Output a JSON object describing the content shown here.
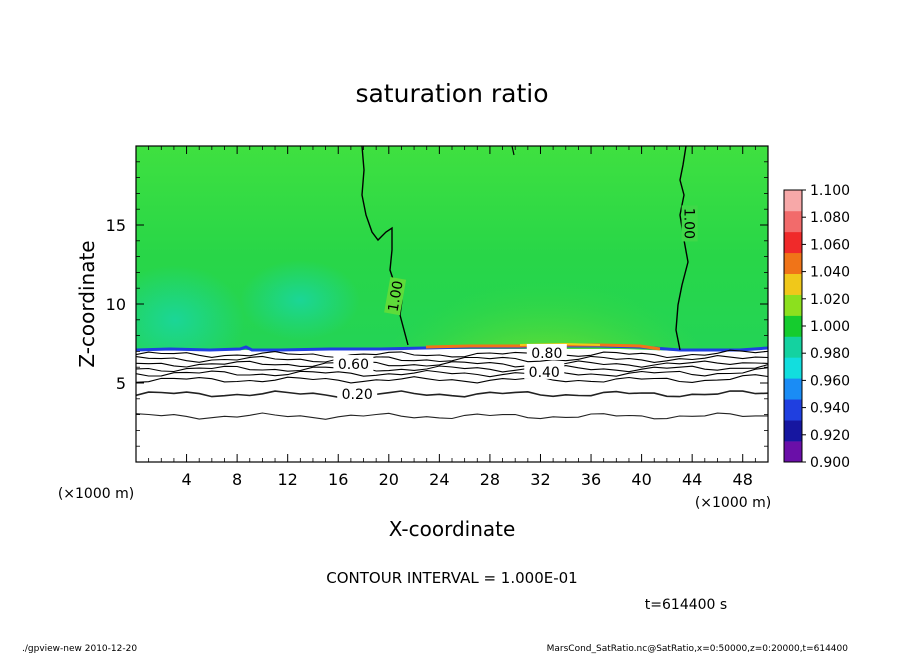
{
  "chart_data": {
    "type": "contour",
    "title": "saturation ratio",
    "xlabel": "X-coordinate",
    "ylabel": "Z-coordinate",
    "x_unit_note": "(×1000 m)",
    "y_unit_note": "(×1000 m)",
    "xlim": [
      0,
      50
    ],
    "ylim": [
      0,
      20
    ],
    "x_ticks": [
      4,
      8,
      12,
      16,
      20,
      24,
      28,
      32,
      36,
      40,
      44,
      48
    ],
    "y_ticks": [
      5,
      10,
      15
    ],
    "contour_interval_text": "CONTOUR INTERVAL = 1.000E-01",
    "time_text": "t=614400 s",
    "colorbar": {
      "levels": [
        0.9,
        0.92,
        0.94,
        0.96,
        0.98,
        1.0,
        1.02,
        1.04,
        1.06,
        1.08,
        1.1
      ],
      "labels": [
        "0.900",
        "0.920",
        "0.940",
        "0.960",
        "0.980",
        "1.000",
        "1.020",
        "1.040",
        "1.060",
        "1.080",
        "1.100"
      ],
      "colors": [
        "#6a0fa8",
        "#1616a0",
        "#1f3fe0",
        "#1a8cf5",
        "#12dede",
        "#14d2a0",
        "#15cc2e",
        "#8ce01e",
        "#f0c81a",
        "#f07418",
        "#f02a2a",
        "#f26b6b",
        "#f7a8a8"
      ]
    },
    "contour_labels": [
      {
        "text": "1.00",
        "x": 20.5,
        "z": 10.5
      },
      {
        "text": "1.00",
        "x": 43.8,
        "z": 15.1
      },
      {
        "text": "0.80",
        "x": 32.5,
        "z": 6.9
      },
      {
        "text": "0.60",
        "x": 17.2,
        "z": 6.2
      },
      {
        "text": "0.40",
        "x": 32.3,
        "z": 5.7
      },
      {
        "text": "0.20",
        "x": 17.5,
        "z": 4.3
      }
    ],
    "contour_levels_below": [
      0.2,
      0.3,
      0.4,
      0.5,
      0.6,
      0.7,
      0.8,
      0.9
    ]
  },
  "footer": {
    "left": "./gpview-new   2010-12-20",
    "right": "MarsCond_SatRatio.nc@SatRatio,x=0:50000,z=0:20000,t=614400"
  }
}
